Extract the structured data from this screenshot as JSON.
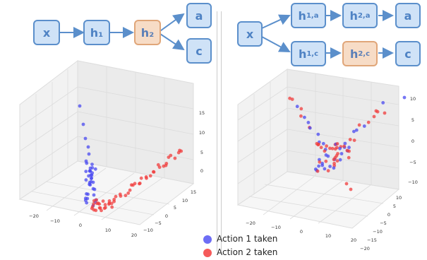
{
  "left_diagram": {
    "nodes": [
      {
        "id": "x",
        "label": "x",
        "sub": ""
      },
      {
        "id": "h1",
        "label": "h₁",
        "sub": ""
      },
      {
        "id": "h2",
        "label": "h₂",
        "sub": ""
      },
      {
        "id": "a",
        "label": "a",
        "sub": ""
      },
      {
        "id": "c",
        "label": "c",
        "sub": ""
      }
    ]
  },
  "right_diagram": {
    "nodes": [
      {
        "id": "x",
        "label": "x",
        "sub": ""
      },
      {
        "id": "h1a",
        "label": "h",
        "sub": "1,a"
      },
      {
        "id": "h2a",
        "label": "h",
        "sub": "2,a"
      },
      {
        "id": "a",
        "label": "a",
        "sub": ""
      },
      {
        "id": "h1c",
        "label": "h",
        "sub": "1,c"
      },
      {
        "id": "h2c",
        "label": "h",
        "sub": "2,c"
      },
      {
        "id": "c",
        "label": "c",
        "sub": ""
      }
    ]
  },
  "colors": {
    "node_blue": "#cfe2f7",
    "node_blue_border": "#5b8fcb",
    "node_orange": "#f7dcc6",
    "node_orange_border": "#e0a679",
    "action1": "#4a4af0",
    "action2": "#f03c3c"
  },
  "left_plot": {
    "x_ticks": [
      "−20",
      "−10",
      "0",
      "10",
      "20"
    ],
    "y_ticks": [
      "−10",
      "−5",
      "0",
      "5",
      "10",
      "15"
    ],
    "z_ticks": [
      "0",
      "5",
      "10",
      "15"
    ]
  },
  "right_plot": {
    "x_ticks": [
      "−20",
      "−10",
      "0",
      "10",
      "20"
    ],
    "y_ticks": [
      "−20",
      "−15",
      "−10",
      "−5",
      "0",
      "5",
      "10"
    ],
    "z_ticks": [
      "−10",
      "−5",
      "0",
      "5",
      "10"
    ]
  },
  "legend": {
    "items": [
      {
        "label": "Action 1 taken",
        "color": "#4a4af0"
      },
      {
        "label": "Action 2 taken",
        "color": "#f03c3c"
      }
    ]
  }
}
